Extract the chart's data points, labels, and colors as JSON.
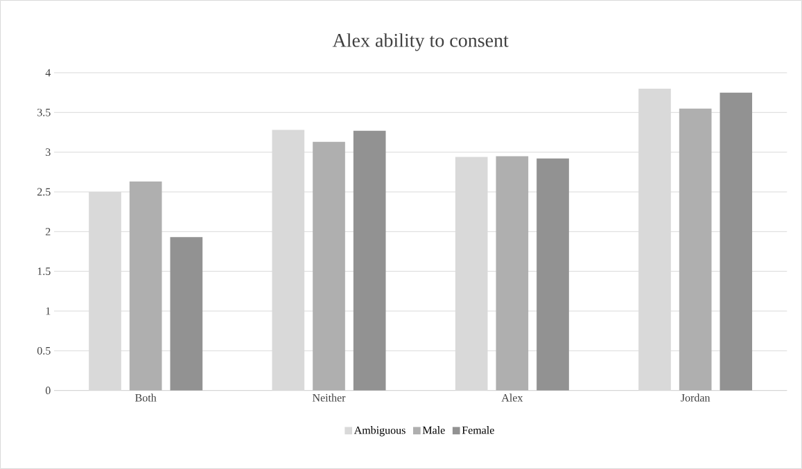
{
  "chart_data": {
    "type": "bar",
    "title": "Alex ability to consent",
    "categories": [
      "Both",
      "Neither",
      "Alex",
      "Jordan"
    ],
    "series": [
      {
        "name": "Ambiguous",
        "color": "#d9d9d9",
        "values": [
          2.5,
          3.28,
          2.94,
          3.8
        ]
      },
      {
        "name": "Male",
        "color": "#afafaf",
        "values": [
          2.63,
          3.13,
          2.95,
          3.55
        ]
      },
      {
        "name": "Female",
        "color": "#929292",
        "values": [
          1.93,
          3.27,
          2.92,
          3.75
        ]
      }
    ],
    "ylim": [
      0,
      4
    ],
    "yticks": [
      0,
      0.5,
      1,
      1.5,
      2,
      2.5,
      3,
      3.5,
      4
    ],
    "grid": "y",
    "legend": "bottom"
  }
}
